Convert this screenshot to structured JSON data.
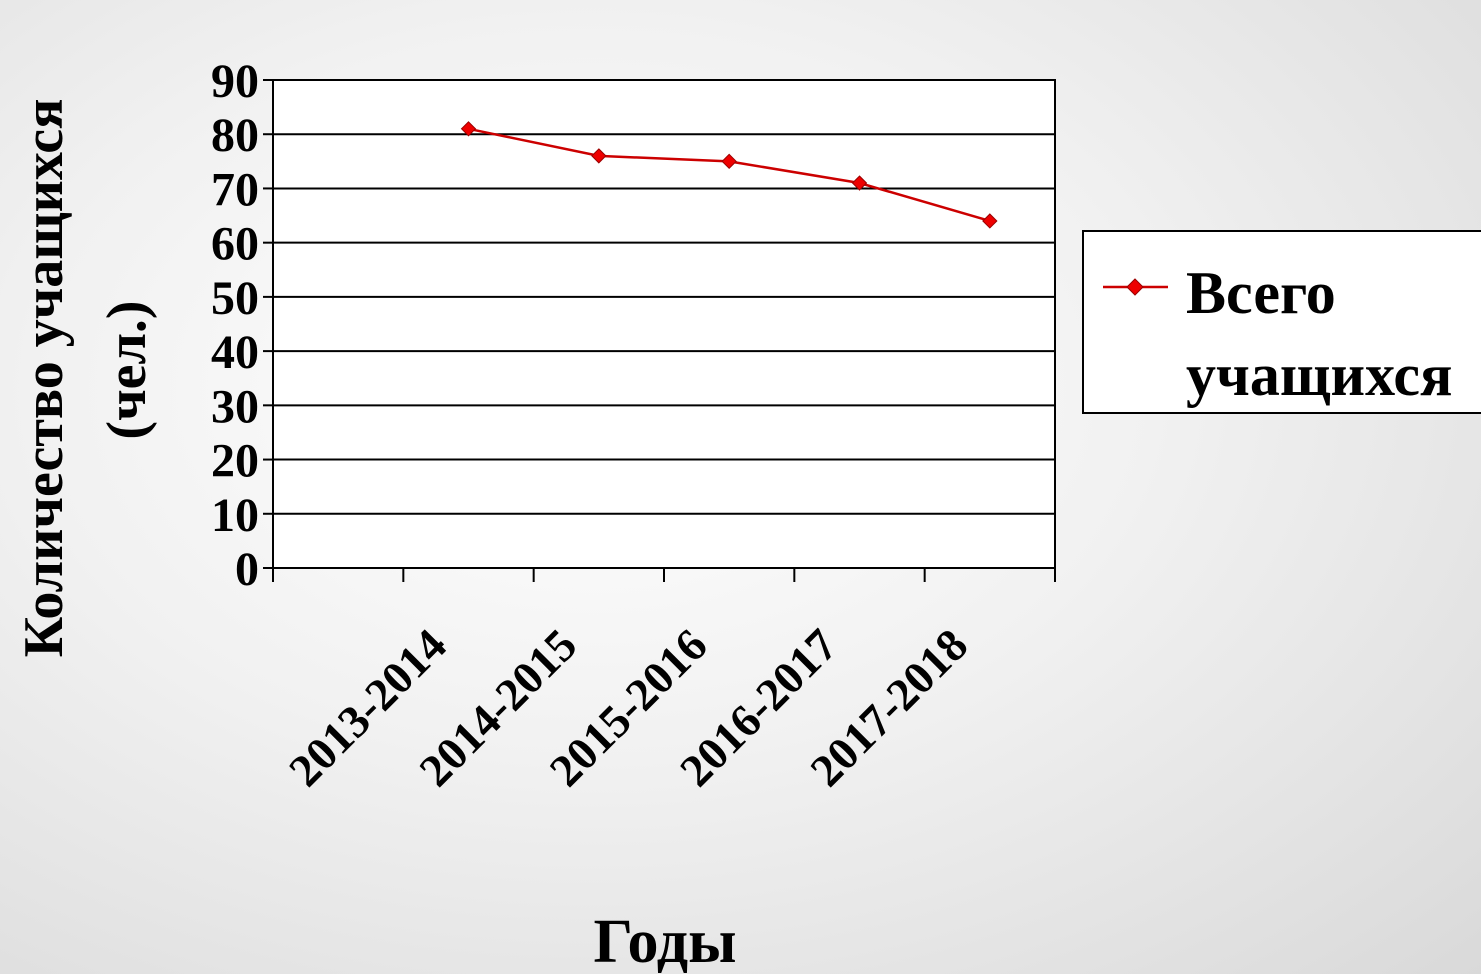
{
  "chart_data": {
    "type": "line",
    "categories": [
      "2013-2014",
      "2014-2015",
      "2015-2016",
      "2016-2017",
      "2017-2018"
    ],
    "series": [
      {
        "name": "Всего учащихся",
        "values": [
          81,
          76,
          75,
          71,
          64
        ],
        "color": "#cc0000"
      }
    ],
    "ylabel": "Количество учащихся (чел.)",
    "xlabel": "Годы",
    "ylim": [
      0,
      90
    ],
    "yticks": [
      0,
      10,
      20,
      30,
      40,
      50,
      60,
      70,
      80,
      90
    ],
    "grid": true,
    "legend": "right",
    "legend_lines": [
      "Всего",
      "учащихся"
    ],
    "ylabel_lines": [
      "Количество учащихся",
      "(чел.)"
    ]
  }
}
